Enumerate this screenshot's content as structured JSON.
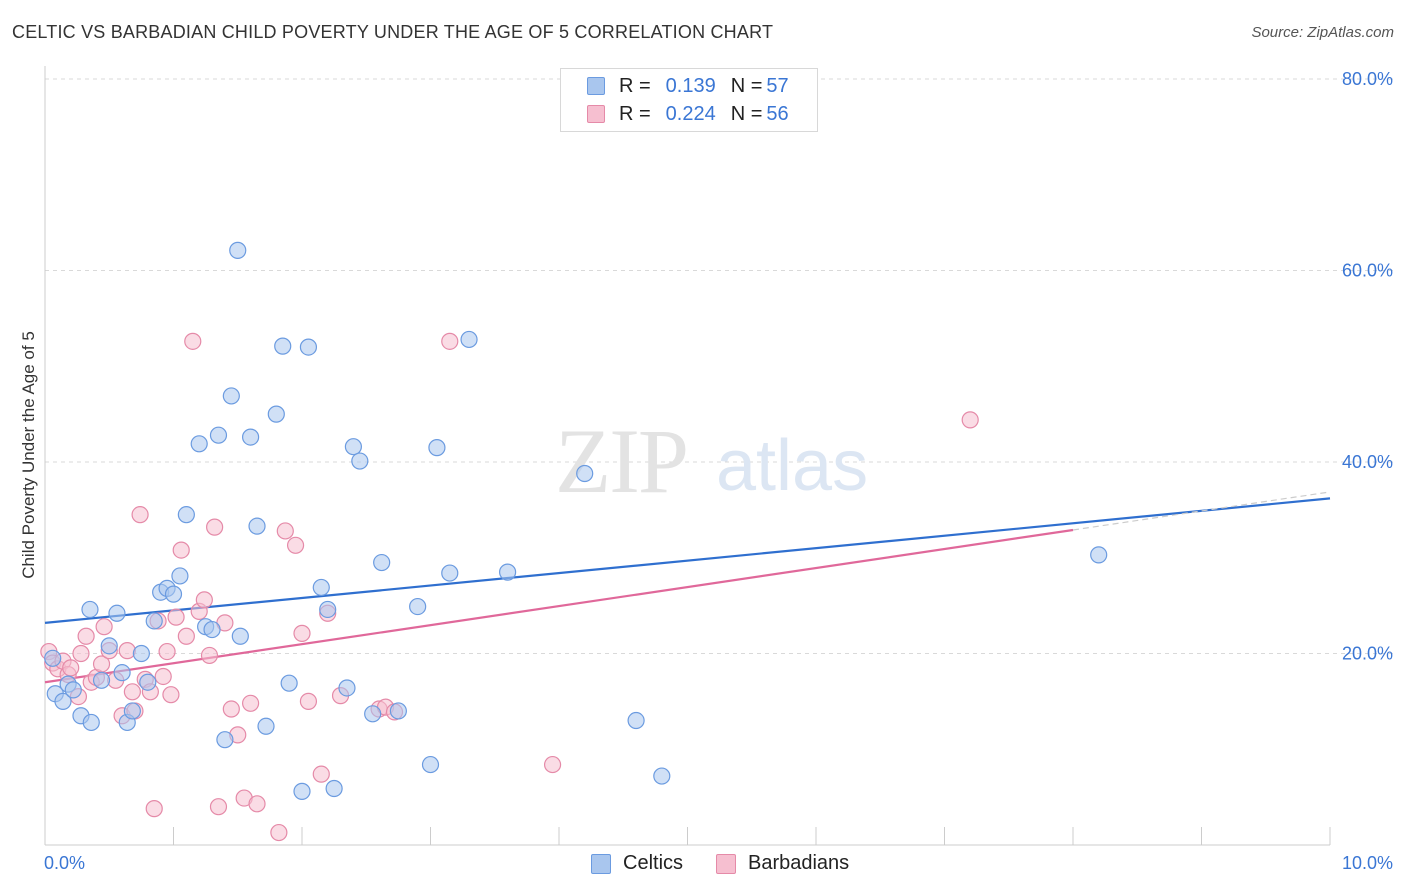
{
  "title": "CELTIC VS BARBADIAN CHILD POVERTY UNDER THE AGE OF 5 CORRELATION CHART",
  "source": "Source: ZipAtlas.com",
  "watermark": {
    "zip": "ZIP",
    "atlas": "atlas"
  },
  "legend": {
    "r_label": "R =",
    "n_label": "N =",
    "rows": [
      {
        "r": "0.139",
        "n": "57"
      },
      {
        "r": "0.224",
        "n": "56"
      }
    ]
  },
  "bottom_legend": [
    "Celtics",
    "Barbadians"
  ],
  "colors": {
    "celtics_fill": "#a9c6ee",
    "celtics_stroke": "#6b9be0",
    "celtics_line": "#2f6fcf",
    "barbadians_fill": "#f6bfd0",
    "barbadians_stroke": "#e58aa8",
    "barbadians_line": "#e0689a",
    "tick_label": "#3a76d4",
    "grid": "#d9d9d9"
  },
  "chart_data": {
    "type": "scatter",
    "title": "CELTIC VS BARBADIAN CHILD POVERTY UNDER THE AGE OF 5 CORRELATION CHART",
    "xlabel": "",
    "ylabel": "Child Poverty Under the Age of 5",
    "xlim": [
      0,
      10
    ],
    "ylim": [
      0,
      80
    ],
    "x_tick_labels": [
      "0.0%",
      "10.0%"
    ],
    "y_ticks": [
      20,
      40,
      60,
      80
    ],
    "y_tick_labels": [
      "20.0%",
      "40.0%",
      "60.0%",
      "80.0%"
    ],
    "grid": true,
    "legend_position": "top-center",
    "series": [
      {
        "name": "Celtics",
        "r": 0.139,
        "n": 57,
        "trend": {
          "x": [
            0,
            10
          ],
          "y": [
            23.2,
            36.2
          ]
        },
        "points": [
          [
            0.08,
            15.8
          ],
          [
            0.14,
            15.0
          ],
          [
            0.18,
            16.8
          ],
          [
            0.22,
            16.2
          ],
          [
            0.28,
            13.5
          ],
          [
            0.36,
            12.8
          ],
          [
            0.44,
            17.2
          ],
          [
            0.35,
            24.6
          ],
          [
            0.56,
            24.2
          ],
          [
            0.5,
            20.8
          ],
          [
            0.6,
            18.0
          ],
          [
            0.64,
            12.8
          ],
          [
            0.68,
            14.0
          ],
          [
            0.75,
            20.0
          ],
          [
            0.8,
            17.0
          ],
          [
            0.85,
            23.4
          ],
          [
            0.9,
            26.4
          ],
          [
            0.95,
            26.8
          ],
          [
            1.0,
            26.2
          ],
          [
            1.05,
            28.1
          ],
          [
            1.1,
            34.5
          ],
          [
            1.2,
            41.9
          ],
          [
            1.25,
            22.8
          ],
          [
            1.3,
            22.5
          ],
          [
            1.35,
            42.8
          ],
          [
            1.4,
            11.0
          ],
          [
            1.45,
            46.9
          ],
          [
            1.5,
            62.1
          ],
          [
            1.52,
            21.8
          ],
          [
            1.6,
            42.6
          ],
          [
            1.65,
            33.3
          ],
          [
            1.72,
            12.4
          ],
          [
            1.8,
            45.0
          ],
          [
            1.85,
            52.1
          ],
          [
            1.9,
            16.9
          ],
          [
            2.0,
            5.6
          ],
          [
            2.05,
            52.0
          ],
          [
            2.15,
            26.9
          ],
          [
            2.2,
            24.6
          ],
          [
            2.25,
            5.9
          ],
          [
            2.35,
            16.4
          ],
          [
            2.4,
            41.6
          ],
          [
            2.45,
            40.1
          ],
          [
            2.55,
            13.7
          ],
          [
            2.62,
            29.5
          ],
          [
            2.75,
            14.0
          ],
          [
            2.9,
            24.9
          ],
          [
            3.0,
            8.4
          ],
          [
            3.05,
            41.5
          ],
          [
            3.15,
            28.4
          ],
          [
            3.3,
            52.8
          ],
          [
            3.6,
            28.5
          ],
          [
            4.2,
            38.8
          ],
          [
            4.6,
            13.0
          ],
          [
            4.8,
            7.2
          ],
          [
            8.2,
            30.3
          ],
          [
            0.06,
            19.5
          ]
        ]
      },
      {
        "name": "Barbadians",
        "r": 0.224,
        "n": 56,
        "trend": {
          "x": [
            0,
            8
          ],
          "y": [
            17.0,
            32.9
          ]
        },
        "points": [
          [
            0.03,
            20.2
          ],
          [
            0.06,
            19.0
          ],
          [
            0.1,
            18.4
          ],
          [
            0.14,
            19.2
          ],
          [
            0.18,
            17.8
          ],
          [
            0.2,
            18.5
          ],
          [
            0.26,
            15.5
          ],
          [
            0.28,
            20.0
          ],
          [
            0.32,
            21.8
          ],
          [
            0.36,
            17.0
          ],
          [
            0.4,
            17.5
          ],
          [
            0.44,
            18.9
          ],
          [
            0.46,
            22.8
          ],
          [
            0.5,
            20.3
          ],
          [
            0.55,
            17.2
          ],
          [
            0.6,
            13.5
          ],
          [
            0.64,
            20.3
          ],
          [
            0.68,
            16.0
          ],
          [
            0.7,
            14.0
          ],
          [
            0.74,
            34.5
          ],
          [
            0.78,
            17.3
          ],
          [
            0.82,
            16.0
          ],
          [
            0.85,
            3.8
          ],
          [
            0.88,
            23.4
          ],
          [
            0.92,
            17.6
          ],
          [
            0.95,
            20.2
          ],
          [
            0.98,
            15.7
          ],
          [
            1.02,
            23.8
          ],
          [
            1.06,
            30.8
          ],
          [
            1.1,
            21.8
          ],
          [
            1.15,
            52.6
          ],
          [
            1.2,
            24.4
          ],
          [
            1.24,
            25.6
          ],
          [
            1.28,
            19.8
          ],
          [
            1.32,
            33.2
          ],
          [
            1.35,
            4.0
          ],
          [
            1.4,
            23.2
          ],
          [
            1.45,
            14.2
          ],
          [
            1.5,
            11.5
          ],
          [
            1.55,
            4.9
          ],
          [
            1.6,
            14.8
          ],
          [
            1.65,
            4.3
          ],
          [
            1.82,
            1.3
          ],
          [
            1.87,
            32.8
          ],
          [
            1.95,
            31.3
          ],
          [
            2.0,
            22.1
          ],
          [
            2.05,
            15.0
          ],
          [
            2.15,
            7.4
          ],
          [
            2.2,
            24.2
          ],
          [
            2.3,
            15.6
          ],
          [
            2.6,
            14.2
          ],
          [
            2.65,
            14.4
          ],
          [
            2.72,
            13.9
          ],
          [
            3.15,
            52.6
          ],
          [
            3.95,
            8.4
          ],
          [
            7.2,
            44.4
          ]
        ]
      }
    ]
  }
}
